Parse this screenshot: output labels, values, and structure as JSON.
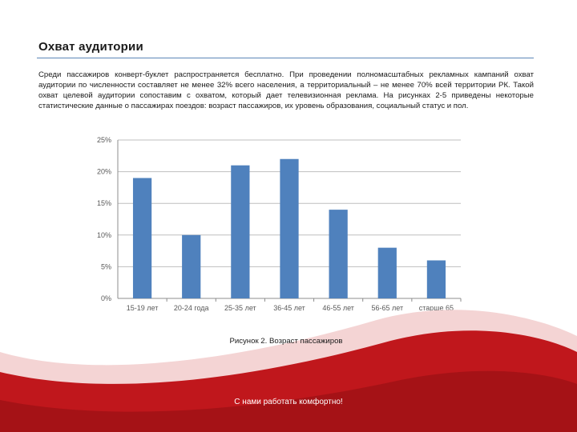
{
  "slide": {
    "title": "Охват аудитории",
    "paragraph": "Среди пассажиров конверт-буклет распространяется бесплатно. При проведении полномасштабных рекламных кампаний охват аудитории по численности составляет не менее 32% всего населения, а территориальный – не менее 70% всей территории РК. Такой охват целевой аудитории сопоставим с охватом, который дает телевизионная реклама. На рисунках 2-5 приведены некоторые статистические данные о пассажирах поездов: возраст пассажиров, их уровень образования, социальный статус и пол.",
    "caption": "Рисунок 2. Возраст пассажиров",
    "footer": "С нами работать комфортно!"
  },
  "colors": {
    "bar": "#4f81bd",
    "rule": "#5b86b8",
    "swoosh_red": "#c0171c",
    "swoosh_dark": "#8e0f13"
  },
  "chart_data": {
    "type": "bar",
    "categories": [
      "15-19 лет",
      "20-24 года",
      "25-35 лет",
      "36-45 лет",
      "46-55 лет",
      "56-65 лет",
      "старше 65 лет"
    ],
    "values": [
      19,
      10,
      21,
      22,
      14,
      8,
      6
    ],
    "ylim": [
      0,
      25
    ],
    "yticks": [
      0,
      5,
      10,
      15,
      20,
      25
    ],
    "ytick_labels": [
      "0%",
      "5%",
      "10%",
      "15%",
      "20%",
      "25%"
    ],
    "grid": true,
    "title": "",
    "xlabel": "",
    "ylabel": ""
  }
}
